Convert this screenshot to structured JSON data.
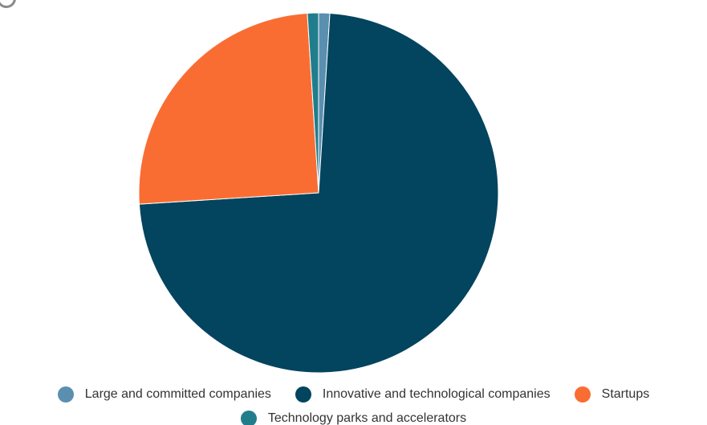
{
  "chart_data": {
    "type": "pie",
    "title": "",
    "slices": [
      {
        "label": "Large and committed companies",
        "value": 1.0,
        "color": "#5a8fb0"
      },
      {
        "label": "Innovative and technological companies",
        "value": 73.0,
        "color": "#03445e"
      },
      {
        "label": "Startups",
        "value": 25.0,
        "color": "#f96d33"
      },
      {
        "label": "Technology parks and accelerators",
        "value": 1.0,
        "color": "#207e8c"
      }
    ],
    "legend_position": "bottom"
  }
}
